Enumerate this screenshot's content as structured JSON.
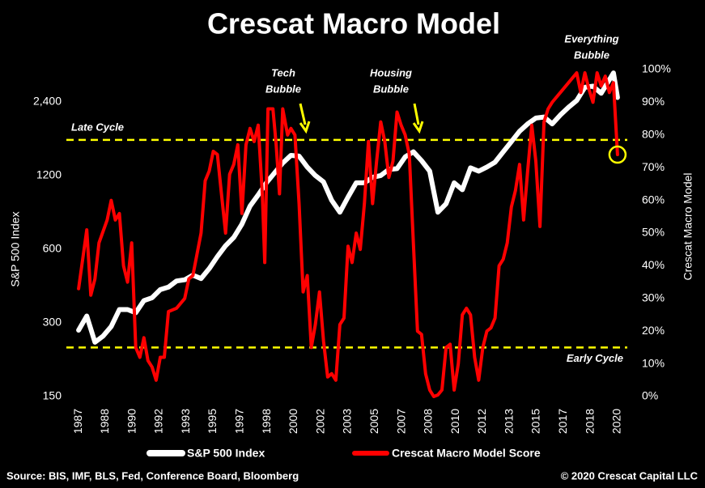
{
  "chart_data": {
    "type": "line",
    "title": "Crescat Macro Model",
    "y_label": "S&P 500 Index",
    "y2_label": "Crescat Macro Model",
    "source": "Source: BIS, IMF, BLS, Fed, Conference Board, Bloomberg",
    "copyright": "© 2020 Crescat Capital LLC",
    "annotations": [
      [
        "Tech",
        "Bubble"
      ],
      [
        "Housing",
        "Bubble"
      ],
      [
        "Everything",
        "Bubble"
      ]
    ],
    "reference_lines": [
      {
        "label": "Late Cycle",
        "value": 78.5,
        "axis": "y2",
        "color": "#ffff00"
      },
      {
        "label": "Early Cycle",
        "value": 15,
        "axis": "y2",
        "color": "#ffff00"
      }
    ],
    "xlim": [
      1986.5,
      2020.5
    ],
    "xticks": [
      {
        "value": 1987.0,
        "label": "1987"
      },
      {
        "value": 1988.65,
        "label": "1988"
      },
      {
        "value": 1990.3,
        "label": "1990"
      },
      {
        "value": 1991.95,
        "label": "1992"
      },
      {
        "value": 1993.6,
        "label": "1993"
      },
      {
        "value": 1995.25,
        "label": "1995"
      },
      {
        "value": 1996.9,
        "label": "1997"
      },
      {
        "value": 1998.55,
        "label": "1998"
      },
      {
        "value": 2000.2,
        "label": "2000"
      },
      {
        "value": 2001.85,
        "label": "2002"
      },
      {
        "value": 2003.5,
        "label": "2003"
      },
      {
        "value": 2005.15,
        "label": "2005"
      },
      {
        "value": 2006.8,
        "label": "2007"
      },
      {
        "value": 2008.45,
        "label": "2008"
      },
      {
        "value": 2010.1,
        "label": "2010"
      },
      {
        "value": 2011.75,
        "label": "2012"
      },
      {
        "value": 2013.4,
        "label": "2013"
      },
      {
        "value": 2015.05,
        "label": "2015"
      },
      {
        "value": 2016.7,
        "label": "2017"
      },
      {
        "value": 2018.35,
        "label": "2018"
      },
      {
        "value": 2020.0,
        "label": "2020"
      }
    ],
    "ylim": [
      150,
      3250
    ],
    "yscale": "log",
    "yticks": [
      150,
      300,
      600,
      1200,
      {
        "value": 2400,
        "label": "2,400"
      }
    ],
    "y2lim": [
      0,
      100
    ],
    "y2ticks": [
      {
        "value": 0,
        "label": "0%"
      },
      {
        "value": 10,
        "label": "10%"
      },
      {
        "value": 20,
        "label": "20%"
      },
      {
        "value": 30,
        "label": "30%"
      },
      {
        "value": 40,
        "label": "40%"
      },
      {
        "value": 50,
        "label": "50%"
      },
      {
        "value": 60,
        "label": "60%"
      },
      {
        "value": 70,
        "label": "70%"
      },
      {
        "value": 80,
        "label": "80%"
      },
      {
        "value": 90,
        "label": "90%"
      },
      {
        "value": 100,
        "label": "100%"
      }
    ],
    "series": [
      {
        "name": "S&P 500 Index",
        "color": "#ffffff",
        "axis": "y",
        "x": [
          1987,
          1987.5,
          1988,
          1988.5,
          1989,
          1989.5,
          1990,
          1990.5,
          1991,
          1991.5,
          1992,
          1992.5,
          1993,
          1993.5,
          1994,
          1994.5,
          1995,
          1995.5,
          1996,
          1996.5,
          1997,
          1997.5,
          1998,
          1998.5,
          1999,
          1999.5,
          2000,
          2000.5,
          2001,
          2001.5,
          2002,
          2002.5,
          2003,
          2003.5,
          2004,
          2004.5,
          2005,
          2005.5,
          2006,
          2006.5,
          2007,
          2007.5,
          2008,
          2008.5,
          2009,
          2009.5,
          2010,
          2010.5,
          2011,
          2011.5,
          2012,
          2012.5,
          2013,
          2013.5,
          2014,
          2014.5,
          2015,
          2015.5,
          2016,
          2016.5,
          2017,
          2017.5,
          2018,
          2018.5,
          2019,
          2019.5,
          2019.75,
          2020
        ],
        "values": [
          280,
          320,
          250,
          265,
          290,
          340,
          340,
          330,
          370,
          380,
          410,
          420,
          445,
          450,
          470,
          455,
          500,
          560,
          620,
          670,
          760,
          900,
          1000,
          1120,
          1230,
          1350,
          1450,
          1440,
          1300,
          1200,
          1130,
          950,
          850,
          980,
          1120,
          1120,
          1180,
          1200,
          1270,
          1280,
          1430,
          1500,
          1380,
          1250,
          850,
          920,
          1120,
          1050,
          1290,
          1250,
          1300,
          1360,
          1500,
          1650,
          1820,
          1950,
          2060,
          2080,
          1950,
          2120,
          2280,
          2430,
          2750,
          2780,
          2600,
          2950,
          3150,
          2500
        ]
      },
      {
        "name": "Crescat Macro Model Score",
        "color": "#ff0000",
        "axis": "y2",
        "x": [
          1987,
          1987.5,
          1987.75,
          1988,
          1988.25,
          1988.75,
          1989,
          1989.25,
          1989.5,
          1989.75,
          1990,
          1990.25,
          1990.5,
          1990.75,
          1991,
          1991.25,
          1991.5,
          1991.75,
          1992,
          1992.25,
          1992.5,
          1993,
          1993.5,
          1993.75,
          1994,
          1994.5,
          1994.75,
          1995,
          1995.25,
          1995.5,
          1995.75,
          1996,
          1996.25,
          1996.5,
          1996.75,
          1997,
          1997.25,
          1997.5,
          1997.75,
          1998,
          1998.25,
          1998.4,
          1998.6,
          1998.9,
          1999.1,
          1999.3,
          1999.5,
          1999.8,
          2000,
          2000.25,
          2000.5,
          2000.75,
          2001,
          2001.25,
          2001.5,
          2001.75,
          2002,
          2002.25,
          2002.5,
          2002.75,
          2003,
          2003.25,
          2003.5,
          2003.75,
          2004,
          2004.25,
          2004.5,
          2004.75,
          2005,
          2005.25,
          2005.5,
          2005.75,
          2006,
          2006.25,
          2006.5,
          2006.75,
          2007,
          2007.25,
          2007.5,
          2007.75,
          2008,
          2008.25,
          2008.5,
          2008.75,
          2009,
          2009.25,
          2009.5,
          2009.75,
          2010,
          2010.25,
          2010.5,
          2010.75,
          2011,
          2011.25,
          2011.5,
          2011.75,
          2012,
          2012.25,
          2012.5,
          2012.75,
          2013,
          2013.25,
          2013.5,
          2013.75,
          2014,
          2014.25,
          2014.5,
          2014.75,
          2015,
          2015.25,
          2015.5,
          2015.75,
          2016,
          2016.5,
          2017,
          2017.5,
          2017.75,
          2018,
          2018.25,
          2018.5,
          2018.75,
          2019,
          2019.25,
          2019.5,
          2019.75,
          2020
        ],
        "values": [
          33,
          51,
          31,
          36,
          47,
          54,
          60,
          54,
          56,
          40,
          35,
          47,
          15,
          12,
          18,
          11,
          9,
          5,
          12,
          12,
          26,
          27,
          30,
          36,
          37,
          50,
          66,
          69,
          75,
          74,
          62,
          50,
          68,
          71,
          77,
          56,
          77,
          82,
          78,
          83,
          62,
          41,
          88,
          88,
          77,
          62,
          88,
          80,
          82,
          80,
          59,
          32,
          37,
          15,
          22,
          32,
          17,
          6,
          7,
          5,
          22,
          24,
          46,
          41,
          50,
          45,
          59,
          78,
          59,
          72,
          84,
          78,
          67,
          72,
          87,
          83,
          80,
          74,
          47,
          20,
          19,
          7,
          2,
          0,
          0.5,
          2,
          15,
          16,
          2,
          10,
          25,
          27,
          25,
          12,
          5,
          15,
          20,
          21,
          24,
          40,
          42,
          47,
          58,
          63,
          71,
          54,
          69,
          83,
          72,
          52,
          84,
          88,
          90,
          93,
          96,
          99,
          93,
          99,
          94,
          90,
          99,
          95,
          98,
          93,
          96,
          74
        ]
      }
    ]
  }
}
